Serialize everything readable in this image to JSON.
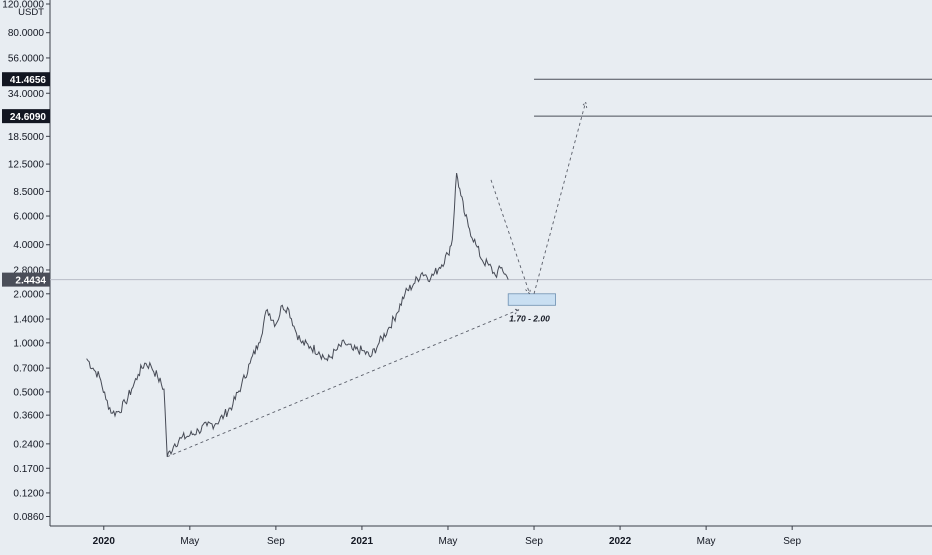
{
  "chart_data": {
    "type": "line",
    "title": "",
    "ylabel": "USDT",
    "xlabel": "",
    "y_scale": "log",
    "ylim": [
      0.0752,
      120.0
    ],
    "y_ticks": [
      {
        "value": 120.0,
        "label": "120.0000"
      },
      {
        "value": 80.0,
        "label": "80.0000"
      },
      {
        "value": 56.0,
        "label": "56.0000"
      },
      {
        "value": 41.4656,
        "label": "41.4656"
      },
      {
        "value": 34.0,
        "label": "34.0000"
      },
      {
        "value": 24.609,
        "label": "24.6090"
      },
      {
        "value": 18.5,
        "label": "18.5000"
      },
      {
        "value": 12.5,
        "label": "12.5000"
      },
      {
        "value": 8.5,
        "label": "8.5000"
      },
      {
        "value": 6.0,
        "label": "6.0000"
      },
      {
        "value": 4.0,
        "label": "4.0000"
      },
      {
        "value": 2.8,
        "label": "2.8000"
      },
      {
        "value": 2.4434,
        "label": "2.4434"
      },
      {
        "value": 2.0,
        "label": "2.0000"
      },
      {
        "value": 1.4,
        "label": "1.4000"
      },
      {
        "value": 1.0,
        "label": "1.0000"
      },
      {
        "value": 0.7,
        "label": "0.7000"
      },
      {
        "value": 0.5,
        "label": "0.5000"
      },
      {
        "value": 0.36,
        "label": "0.3600"
      },
      {
        "value": 0.24,
        "label": "0.2400"
      },
      {
        "value": 0.17,
        "label": "0.1700"
      },
      {
        "value": 0.12,
        "label": "0.1200"
      },
      {
        "value": 0.086,
        "label": "0.0860"
      }
    ],
    "highlight_labels": [
      {
        "value": 41.4656,
        "label": "41.4656",
        "color": "#131722"
      },
      {
        "value": 24.609,
        "label": "24.6090",
        "color": "#131722"
      },
      {
        "value": 2.4434,
        "label": "2.4434",
        "color": "#4a4e59"
      }
    ],
    "x_ticks": [
      "2020",
      "May",
      "Sep",
      "2021",
      "May",
      "Sep",
      "2022",
      "May",
      "Sep"
    ],
    "x_tick_months": [
      0,
      4,
      8,
      12,
      16,
      20,
      24,
      28,
      32
    ],
    "x_origin_label": "2020",
    "xlim_months": [
      -2.5,
      38.5
    ],
    "series": [
      {
        "values": [
          [
            -0.8,
            0.8
          ],
          [
            -0.5,
            0.7
          ],
          [
            -0.2,
            0.62
          ],
          [
            0.1,
            0.45
          ],
          [
            0.4,
            0.37
          ],
          [
            0.7,
            0.38
          ],
          [
            1.0,
            0.43
          ],
          [
            1.3,
            0.52
          ],
          [
            1.6,
            0.64
          ],
          [
            1.9,
            0.75
          ],
          [
            2.2,
            0.72
          ],
          [
            2.5,
            0.62
          ],
          [
            2.8,
            0.52
          ],
          [
            2.95,
            0.2
          ],
          [
            3.3,
            0.24
          ],
          [
            3.6,
            0.26
          ],
          [
            4.0,
            0.27
          ],
          [
            4.4,
            0.29
          ],
          [
            4.8,
            0.31
          ],
          [
            5.2,
            0.32
          ],
          [
            5.6,
            0.36
          ],
          [
            6.0,
            0.42
          ],
          [
            6.4,
            0.55
          ],
          [
            6.8,
            0.75
          ],
          [
            7.2,
            1.0
          ],
          [
            7.6,
            1.6
          ],
          [
            8.0,
            1.3
          ],
          [
            8.3,
            1.7
          ],
          [
            8.6,
            1.6
          ],
          [
            8.9,
            1.2
          ],
          [
            9.2,
            1.0
          ],
          [
            9.6,
            0.95
          ],
          [
            10.0,
            0.88
          ],
          [
            10.4,
            0.78
          ],
          [
            10.8,
            0.9
          ],
          [
            11.2,
            1.0
          ],
          [
            11.6,
            0.9
          ],
          [
            12.0,
            0.9
          ],
          [
            12.4,
            0.82
          ],
          [
            12.8,
            1.0
          ],
          [
            13.2,
            1.2
          ],
          [
            13.6,
            1.5
          ],
          [
            14.0,
            2.0
          ],
          [
            14.4,
            2.3
          ],
          [
            14.8,
            2.7
          ],
          [
            15.2,
            2.5
          ],
          [
            15.6,
            2.9
          ],
          [
            16.0,
            3.5
          ],
          [
            16.2,
            4.3
          ],
          [
            16.4,
            11.0
          ],
          [
            16.6,
            8.0
          ],
          [
            16.8,
            6.0
          ],
          [
            17.0,
            5.0
          ],
          [
            17.3,
            4.0
          ],
          [
            17.6,
            3.2
          ],
          [
            17.9,
            3.0
          ],
          [
            18.2,
            2.6
          ],
          [
            18.5,
            2.9
          ],
          [
            18.8,
            2.4434
          ]
        ]
      }
    ],
    "annotations": [
      {
        "type": "hline",
        "value": 41.4656,
        "from_month": 20.0
      },
      {
        "type": "hline",
        "value": 24.609,
        "from_month": 20.0
      },
      {
        "type": "hline",
        "value": 2.4434,
        "from_month": -2.5,
        "style": "light"
      },
      {
        "type": "zone",
        "label": "1.70 - 2.00",
        "low": 1.7,
        "high": 2.0,
        "from_month": 18.8,
        "to_month": 21.0
      },
      {
        "type": "trendline",
        "style": "dashed",
        "points": [
          [
            2.95,
            0.2
          ],
          [
            19.3,
            1.6
          ]
        ]
      },
      {
        "type": "projection",
        "style": "dashed",
        "points": [
          [
            18.0,
            10.0
          ],
          [
            19.8,
            2.0
          ]
        ]
      },
      {
        "type": "projection",
        "style": "dashed",
        "arrow": true,
        "points": [
          [
            20.0,
            2.0
          ],
          [
            22.4,
            30.0
          ]
        ]
      }
    ],
    "grid": false,
    "legend": "none"
  }
}
